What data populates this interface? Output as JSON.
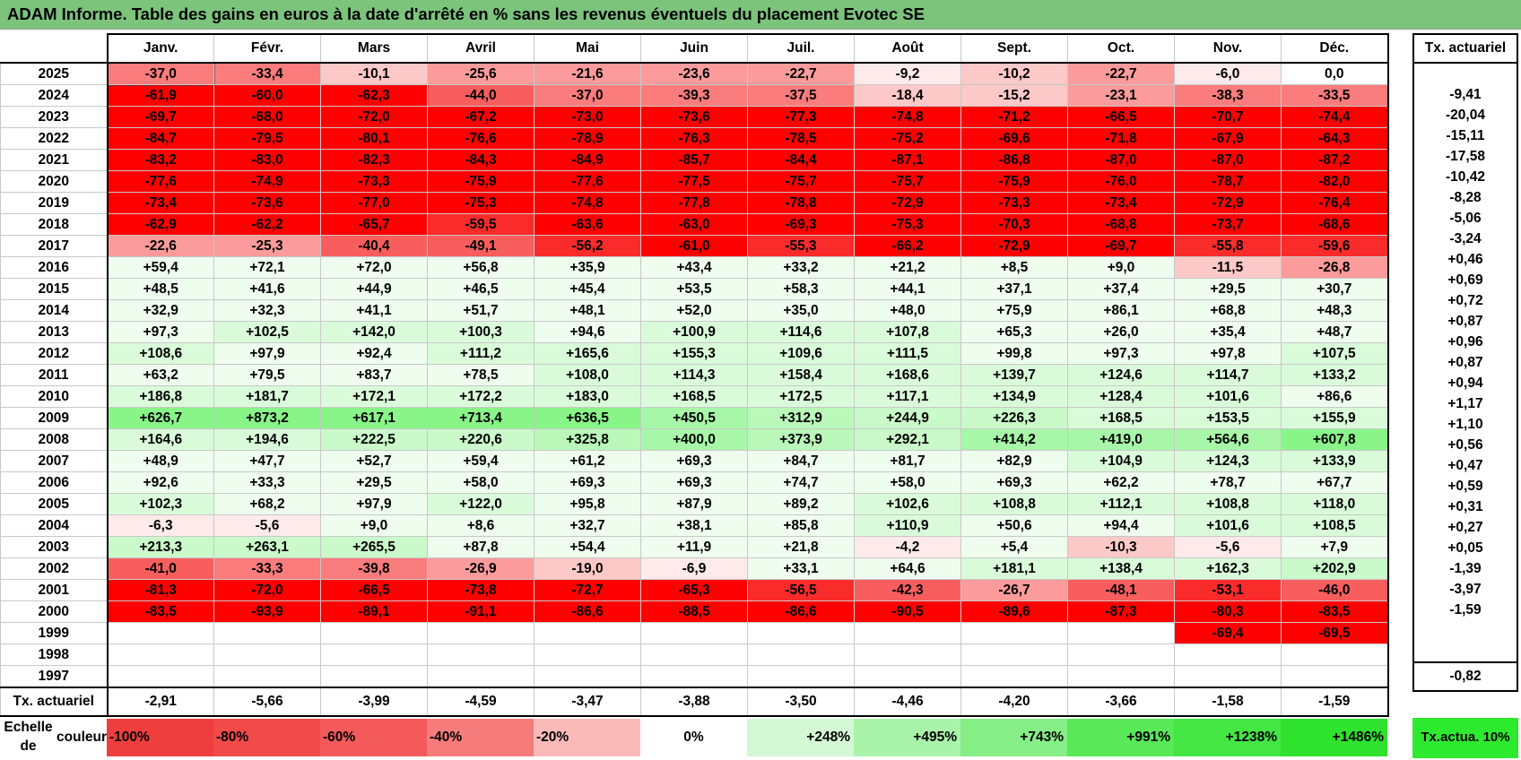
{
  "title": "ADAM Informe. Table des gains en euros à la date d'arrêté en % sans les revenus éventuels du placement Evotec SE",
  "months": [
    "Janv.",
    "Févr.",
    "Mars",
    "Avril",
    "Mai",
    "Juin",
    "Juil.",
    "Août",
    "Sept.",
    "Oct.",
    "Nov.",
    "Déc."
  ],
  "side_header": "Tx. actuariel",
  "rows": [
    {
      "year": "2025",
      "values": [
        "-37,0",
        "-33,4",
        "-10,1",
        "-25,6",
        "-21,6",
        "-23,6",
        "-22,7",
        "-9,2",
        "-10,2",
        "-22,7",
        "-6,0",
        "0,0"
      ],
      "tx": ""
    },
    {
      "year": "2024",
      "values": [
        "-61,9",
        "-60,0",
        "-62,3",
        "-44,0",
        "-37,0",
        "-39,3",
        "-37,5",
        "-18,4",
        "-15,2",
        "-23,1",
        "-38,3",
        "-33,5"
      ],
      "tx": "-9,41"
    },
    {
      "year": "2023",
      "values": [
        "-69,7",
        "-68,0",
        "-72,0",
        "-67,2",
        "-73,0",
        "-73,6",
        "-77,3",
        "-74,8",
        "-71,2",
        "-66,5",
        "-70,7",
        "-74,4"
      ],
      "tx": "-20,04"
    },
    {
      "year": "2022",
      "values": [
        "-84,7",
        "-79,5",
        "-80,1",
        "-76,6",
        "-78,9",
        "-76,3",
        "-78,5",
        "-75,2",
        "-69,6",
        "-71,8",
        "-67,9",
        "-64,3"
      ],
      "tx": "-15,11"
    },
    {
      "year": "2021",
      "values": [
        "-83,2",
        "-83,0",
        "-82,3",
        "-84,3",
        "-84,9",
        "-85,7",
        "-84,4",
        "-87,1",
        "-86,8",
        "-87,0",
        "-87,0",
        "-87,2"
      ],
      "tx": "-17,58"
    },
    {
      "year": "2020",
      "values": [
        "-77,6",
        "-74,9",
        "-73,3",
        "-75,9",
        "-77,6",
        "-77,5",
        "-75,7",
        "-75,7",
        "-75,9",
        "-76,0",
        "-78,7",
        "-82,0"
      ],
      "tx": "-10,42"
    },
    {
      "year": "2019",
      "values": [
        "-73,4",
        "-73,6",
        "-77,0",
        "-75,3",
        "-74,8",
        "-77,8",
        "-78,8",
        "-72,9",
        "-73,3",
        "-73,4",
        "-72,9",
        "-76,4"
      ],
      "tx": "-8,28"
    },
    {
      "year": "2018",
      "values": [
        "-62,9",
        "-62,2",
        "-65,7",
        "-59,5",
        "-63,6",
        "-63,0",
        "-69,3",
        "-75,3",
        "-70,3",
        "-68,8",
        "-73,7",
        "-68,6"
      ],
      "tx": "-5,06"
    },
    {
      "year": "2017",
      "values": [
        "-22,6",
        "-25,3",
        "-40,4",
        "-49,1",
        "-56,2",
        "-61,0",
        "-55,3",
        "-66,2",
        "-72,9",
        "-69,7",
        "-55,8",
        "-59,6"
      ],
      "tx": "-3,24"
    },
    {
      "year": "2016",
      "values": [
        "+59,4",
        "+72,1",
        "+72,0",
        "+56,8",
        "+35,9",
        "+43,4",
        "+33,2",
        "+21,2",
        "+8,5",
        "+9,0",
        "-11,5",
        "-26,8"
      ],
      "tx": "+0,46"
    },
    {
      "year": "2015",
      "values": [
        "+48,5",
        "+41,6",
        "+44,9",
        "+46,5",
        "+45,4",
        "+53,5",
        "+58,3",
        "+44,1",
        "+37,1",
        "+37,4",
        "+29,5",
        "+30,7"
      ],
      "tx": "+0,69"
    },
    {
      "year": "2014",
      "values": [
        "+32,9",
        "+32,3",
        "+41,1",
        "+51,7",
        "+48,1",
        "+52,0",
        "+35,0",
        "+48,0",
        "+75,9",
        "+86,1",
        "+68,8",
        "+48,3"
      ],
      "tx": "+0,72"
    },
    {
      "year": "2013",
      "values": [
        "+97,3",
        "+102,5",
        "+142,0",
        "+100,3",
        "+94,6",
        "+100,9",
        "+114,6",
        "+107,8",
        "+65,3",
        "+26,0",
        "+35,4",
        "+48,7"
      ],
      "tx": "+0,87"
    },
    {
      "year": "2012",
      "values": [
        "+108,6",
        "+97,9",
        "+92,4",
        "+111,2",
        "+165,6",
        "+155,3",
        "+109,6",
        "+111,5",
        "+99,8",
        "+97,3",
        "+97,8",
        "+107,5"
      ],
      "tx": "+0,96"
    },
    {
      "year": "2011",
      "values": [
        "+63,2",
        "+79,5",
        "+83,7",
        "+78,5",
        "+108,0",
        "+114,3",
        "+158,4",
        "+168,6",
        "+139,7",
        "+124,6",
        "+114,7",
        "+133,2"
      ],
      "tx": "+0,87"
    },
    {
      "year": "2010",
      "values": [
        "+186,8",
        "+181,7",
        "+172,1",
        "+172,2",
        "+183,0",
        "+168,5",
        "+172,5",
        "+117,1",
        "+134,9",
        "+128,4",
        "+101,6",
        "+86,6"
      ],
      "tx": "+0,94"
    },
    {
      "year": "2009",
      "values": [
        "+626,7",
        "+873,2",
        "+617,1",
        "+713,4",
        "+636,5",
        "+450,5",
        "+312,9",
        "+244,9",
        "+226,3",
        "+168,5",
        "+153,5",
        "+155,9"
      ],
      "tx": "+1,17"
    },
    {
      "year": "2008",
      "values": [
        "+164,6",
        "+194,6",
        "+222,5",
        "+220,6",
        "+325,8",
        "+400,0",
        "+373,9",
        "+292,1",
        "+414,2",
        "+419,0",
        "+564,6",
        "+607,8"
      ],
      "tx": "+1,10"
    },
    {
      "year": "2007",
      "values": [
        "+48,9",
        "+47,7",
        "+52,7",
        "+59,4",
        "+61,2",
        "+69,3",
        "+84,7",
        "+81,7",
        "+82,9",
        "+104,9",
        "+124,3",
        "+133,9"
      ],
      "tx": "+0,56"
    },
    {
      "year": "2006",
      "values": [
        "+92,6",
        "+33,3",
        "+29,5",
        "+58,0",
        "+69,3",
        "+69,3",
        "+74,7",
        "+58,0",
        "+69,3",
        "+62,2",
        "+78,7",
        "+67,7"
      ],
      "tx": "+0,47"
    },
    {
      "year": "2005",
      "values": [
        "+102,3",
        "+68,2",
        "+97,9",
        "+122,0",
        "+95,8",
        "+87,9",
        "+89,2",
        "+102,6",
        "+108,8",
        "+112,1",
        "+108,8",
        "+118,0"
      ],
      "tx": "+0,59"
    },
    {
      "year": "2004",
      "values": [
        "-6,3",
        "-5,6",
        "+9,0",
        "+8,6",
        "+32,7",
        "+38,1",
        "+85,8",
        "+110,9",
        "+50,6",
        "+94,4",
        "+101,6",
        "+108,5"
      ],
      "tx": "+0,31"
    },
    {
      "year": "2003",
      "values": [
        "+213,3",
        "+263,1",
        "+265,5",
        "+87,8",
        "+54,4",
        "+11,9",
        "+21,8",
        "-4,2",
        "+5,4",
        "-10,3",
        "-5,6",
        "+7,9"
      ],
      "tx": "+0,27"
    },
    {
      "year": "2002",
      "values": [
        "-41,0",
        "-33,3",
        "-39,8",
        "-26,9",
        "-19,0",
        "-6,9",
        "+33,1",
        "+64,6",
        "+181,1",
        "+138,4",
        "+162,3",
        "+202,9"
      ],
      "tx": "+0,05"
    },
    {
      "year": "2001",
      "values": [
        "-81,3",
        "-72,0",
        "-66,5",
        "-73,8",
        "-72,7",
        "-65,3",
        "-56,5",
        "-42,3",
        "-26,7",
        "-48,1",
        "-53,1",
        "-46,0"
      ],
      "tx": "-1,39"
    },
    {
      "year": "2000",
      "values": [
        "-83,5",
        "-93,9",
        "-89,1",
        "-91,1",
        "-86,6",
        "-88,5",
        "-86,6",
        "-90,5",
        "-89,6",
        "-87,3",
        "-80,3",
        "-83,5"
      ],
      "tx": "-3,97"
    },
    {
      "year": "1999",
      "values": [
        "",
        "",
        "",
        "",
        "",
        "",
        "",
        "",
        "",
        "",
        "-69,4",
        "-69,5"
      ],
      "tx": "-1,59"
    },
    {
      "year": "1998",
      "values": [
        "",
        "",
        "",
        "",
        "",
        "",
        "",
        "",
        "",
        "",
        "",
        ""
      ],
      "tx": ""
    },
    {
      "year": "1997",
      "values": [
        "",
        "",
        "",
        "",
        "",
        "",
        "",
        "",
        "",
        "",
        "",
        ""
      ],
      "tx": ""
    }
  ],
  "totals": {
    "label": "Tx. actuariel",
    "values": [
      "-2,91",
      "-5,66",
      "-3,99",
      "-4,59",
      "-3,47",
      "-3,88",
      "-3,50",
      "-4,46",
      "-4,20",
      "-3,66",
      "-1,58",
      "-1,59"
    ],
    "tx": "-0,82"
  },
  "scale": {
    "label": "Echelle de couleur",
    "items": [
      {
        "text": "-100%",
        "color": "#ef3e3e",
        "align": "left"
      },
      {
        "text": "-80%",
        "color": "#f14a4a",
        "align": "left"
      },
      {
        "text": "-60%",
        "color": "#f45a5a",
        "align": "left"
      },
      {
        "text": "-40%",
        "color": "#f67c7c",
        "align": "left"
      },
      {
        "text": "-20%",
        "color": "#fbbaba",
        "align": "left"
      },
      {
        "text": "0%",
        "color": "#ffffff",
        "align": "center"
      },
      {
        "text": "+248%",
        "color": "#d4f8d4",
        "align": "right"
      },
      {
        "text": "+495%",
        "color": "#aaf3aa",
        "align": "right"
      },
      {
        "text": "+743%",
        "color": "#86ee86",
        "align": "right"
      },
      {
        "text": "+991%",
        "color": "#58e858",
        "align": "right"
      },
      {
        "text": "+1238%",
        "color": "#44e644",
        "align": "right"
      },
      {
        "text": "+1486%",
        "color": "#2ee22e",
        "align": "right"
      }
    ],
    "side_label": "Tx. actua. 10%"
  },
  "colors": {
    "title_bg": "#7cc47c",
    "side_scale_bg": "#2eea2e"
  }
}
